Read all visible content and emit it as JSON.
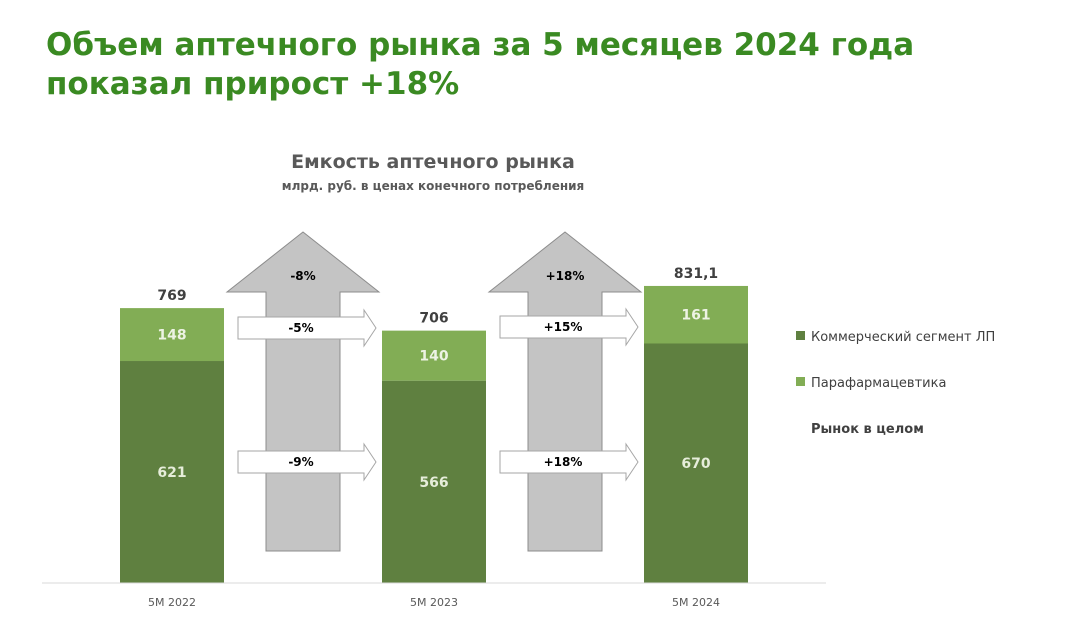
{
  "headline": {
    "line1": "Объем аптечного рынка за 5 месяцев 2024 года",
    "line2": "показал прирост +18%"
  },
  "colors": {
    "headline": "#3a8a22",
    "commercial": "#5f8040",
    "parapharm": "#82ad55",
    "arrow_big": "#c4c4c4",
    "arrow_small": "#ffffff"
  },
  "chart_data": {
    "type": "bar",
    "stacked": true,
    "title": "Емкость аптечного рынка",
    "subtitle": "млрд. руб. в ценах конечного потребления",
    "categories": [
      "5M 2022",
      "5M 2023",
      "5M 2024"
    ],
    "series": [
      {
        "name": "Коммерческий сегмент ЛП",
        "values": [
          621,
          566,
          670
        ],
        "labels": [
          "621",
          "566",
          "670"
        ]
      },
      {
        "name": "Парафармацевтика",
        "values": [
          148,
          140,
          161
        ],
        "labels": [
          "148",
          "140",
          "161"
        ]
      }
    ],
    "totals": {
      "name": "Рынок в целом",
      "values": [
        769,
        706,
        831.1
      ],
      "labels": [
        "769",
        "706",
        "831,1"
      ]
    },
    "ylim": [
      0,
      900
    ],
    "legend": "right",
    "grid": false,
    "changes": [
      {
        "between": [
          0,
          1
        ],
        "total": "-8%",
        "parapharm": "-5%",
        "commercial": "-9%"
      },
      {
        "between": [
          1,
          2
        ],
        "total": "+18%",
        "parapharm": "+15%",
        "commercial": "+18%"
      }
    ]
  }
}
